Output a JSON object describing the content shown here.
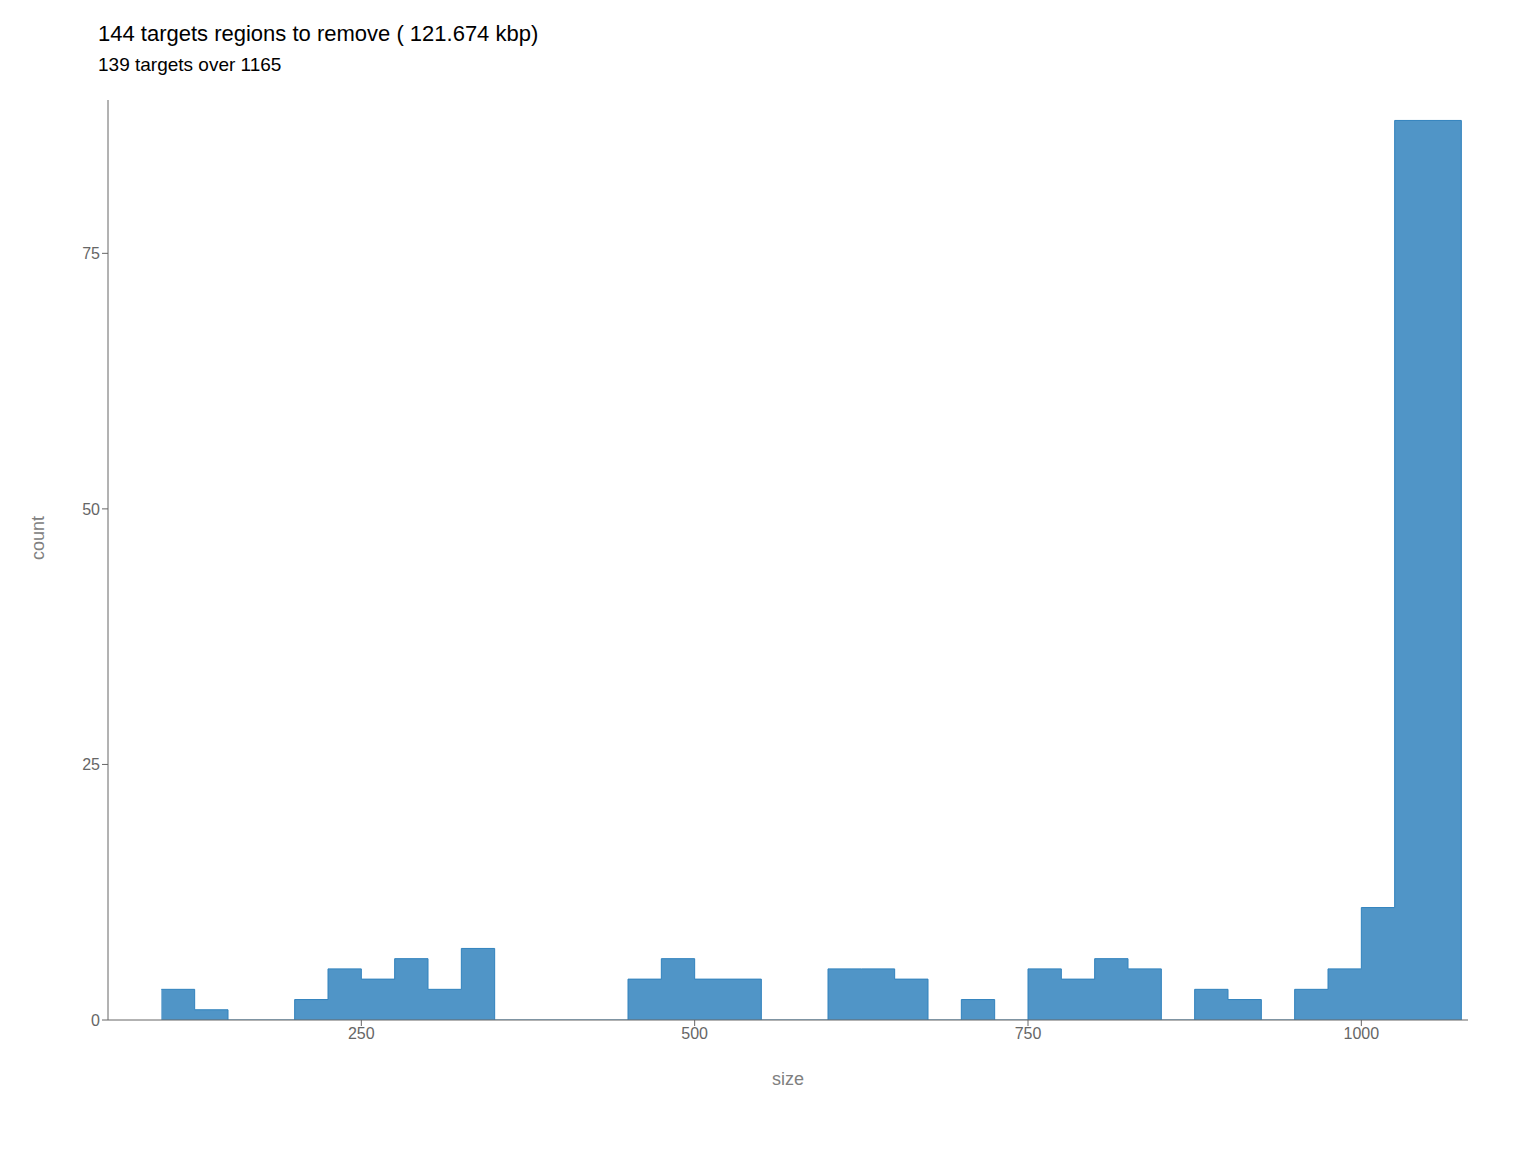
{
  "chart_data": {
    "type": "histogram",
    "title": "144 targets regions to remove ( 121.674 kbp)",
    "subtitle": "139 targets over 1165",
    "x_label": "size",
    "y_label": "count",
    "bins": [
      100,
      125,
      150,
      200,
      225,
      250,
      275,
      300,
      325,
      350,
      450,
      475,
      500,
      525,
      550,
      600,
      625,
      650,
      675,
      700,
      725,
      750,
      775,
      800,
      825,
      850,
      875,
      900,
      925,
      950,
      975,
      1000,
      1025,
      1075
    ],
    "values": [
      3,
      1,
      0,
      2,
      5,
      4,
      6,
      3,
      7,
      0,
      4,
      6,
      4,
      4,
      0,
      5,
      5,
      4,
      0,
      2,
      0,
      5,
      4,
      6,
      5,
      0,
      3,
      2,
      0,
      3,
      5,
      11,
      88
    ],
    "xlim": [
      60,
      1080
    ],
    "xticks": [
      250,
      500,
      750,
      1000
    ],
    "ylim": [
      0,
      90
    ],
    "yticks": [
      0,
      25,
      50,
      75
    ],
    "grid": false
  }
}
